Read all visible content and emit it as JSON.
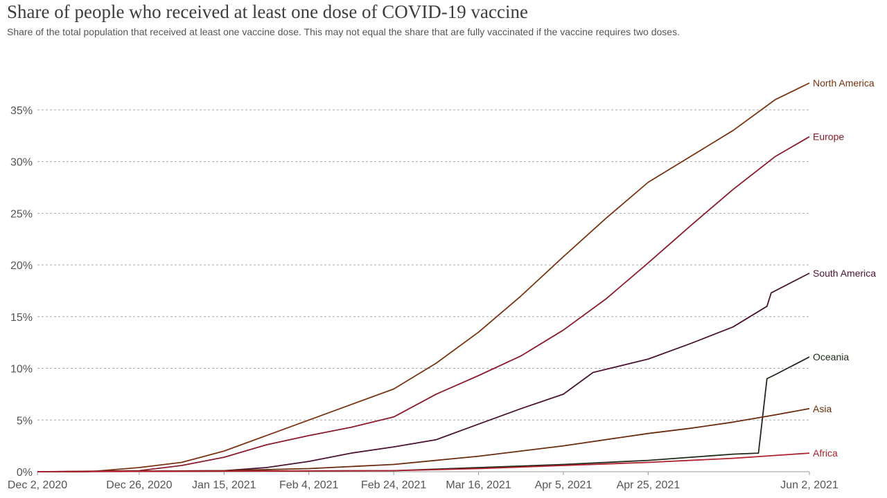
{
  "chart_data": {
    "type": "line",
    "title": "Share of people who received at least one dose of COVID-19 vaccine",
    "subtitle": "Share of the total population that received at least one vaccine dose. This may not equal the share that are fully vaccinated if the vaccine requires two doses.",
    "x_tick_labels": [
      "Dec 2, 2020",
      "Dec 26, 2020",
      "Jan 15, 2021",
      "Feb 4, 2021",
      "Feb 24, 2021",
      "Mar 16, 2021",
      "Apr 5, 2021",
      "Apr 25, 2021",
      "Jun 2, 2021"
    ],
    "x_range": [
      "2020-12-02",
      "2021-06-02"
    ],
    "y_tick_labels": [
      "0%",
      "5%",
      "10%",
      "15%",
      "20%",
      "25%",
      "30%",
      "35%"
    ],
    "y_ticks": [
      0,
      5,
      10,
      15,
      20,
      25,
      30,
      35
    ],
    "ylim": [
      0,
      37.8
    ],
    "grid": "horizontal dashed",
    "legend": "labels at line ends (right)",
    "series": [
      {
        "name": "North America",
        "color": "#7a3210",
        "points": [
          [
            "2020-12-02",
            0
          ],
          [
            "2020-12-14",
            0
          ],
          [
            "2020-12-20",
            0.2
          ],
          [
            "2020-12-26",
            0.4
          ],
          [
            "2021-01-05",
            0.9
          ],
          [
            "2021-01-15",
            2.0
          ],
          [
            "2021-01-25",
            3.5
          ],
          [
            "2021-02-04",
            5.0
          ],
          [
            "2021-02-14",
            6.5
          ],
          [
            "2021-02-24",
            8.0
          ],
          [
            "2021-03-06",
            10.5
          ],
          [
            "2021-03-16",
            13.5
          ],
          [
            "2021-03-26",
            17.0
          ],
          [
            "2021-04-05",
            20.8
          ],
          [
            "2021-04-15",
            24.5
          ],
          [
            "2021-04-25",
            28.0
          ],
          [
            "2021-05-05",
            30.5
          ],
          [
            "2021-05-15",
            33.0
          ],
          [
            "2021-05-25",
            36.0
          ],
          [
            "2021-06-02",
            37.6
          ]
        ]
      },
      {
        "name": "Europe",
        "color": "#8b1a2a",
        "points": [
          [
            "2020-12-02",
            0
          ],
          [
            "2020-12-26",
            0.1
          ],
          [
            "2021-01-05",
            0.6
          ],
          [
            "2021-01-15",
            1.4
          ],
          [
            "2021-01-25",
            2.6
          ],
          [
            "2021-02-04",
            3.5
          ],
          [
            "2021-02-14",
            4.3
          ],
          [
            "2021-02-24",
            5.3
          ],
          [
            "2021-03-06",
            7.5
          ],
          [
            "2021-03-16",
            9.3
          ],
          [
            "2021-03-26",
            11.2
          ],
          [
            "2021-04-05",
            13.7
          ],
          [
            "2021-04-15",
            16.7
          ],
          [
            "2021-04-25",
            20.2
          ],
          [
            "2021-05-05",
            23.8
          ],
          [
            "2021-05-15",
            27.3
          ],
          [
            "2021-05-25",
            30.5
          ],
          [
            "2021-06-02",
            32.4
          ]
        ]
      },
      {
        "name": "South America",
        "color": "#4a1230",
        "points": [
          [
            "2020-12-02",
            0
          ],
          [
            "2021-01-15",
            0.1
          ],
          [
            "2021-01-25",
            0.4
          ],
          [
            "2021-02-04",
            1.0
          ],
          [
            "2021-02-14",
            1.8
          ],
          [
            "2021-02-24",
            2.4
          ],
          [
            "2021-03-06",
            3.1
          ],
          [
            "2021-03-16",
            4.6
          ],
          [
            "2021-03-26",
            6.1
          ],
          [
            "2021-04-05",
            7.5
          ],
          [
            "2021-04-12",
            9.6
          ],
          [
            "2021-04-25",
            10.9
          ],
          [
            "2021-05-05",
            12.4
          ],
          [
            "2021-05-15",
            14.0
          ],
          [
            "2021-05-23",
            16.0
          ],
          [
            "2021-05-24",
            17.3
          ],
          [
            "2021-06-02",
            19.2
          ]
        ]
      },
      {
        "name": "Oceania",
        "color": "#1e2a1a",
        "points": [
          [
            "2020-12-02",
            0
          ],
          [
            "2021-02-24",
            0.1
          ],
          [
            "2021-03-16",
            0.4
          ],
          [
            "2021-04-05",
            0.7
          ],
          [
            "2021-04-25",
            1.1
          ],
          [
            "2021-05-05",
            1.4
          ],
          [
            "2021-05-15",
            1.7
          ],
          [
            "2021-05-21",
            1.8
          ],
          [
            "2021-05-23",
            9.0
          ],
          [
            "2021-05-25",
            9.4
          ],
          [
            "2021-06-02",
            11.1
          ]
        ]
      },
      {
        "name": "Asia",
        "color": "#6b2a0c",
        "points": [
          [
            "2020-12-02",
            0
          ],
          [
            "2021-01-15",
            0.1
          ],
          [
            "2021-02-04",
            0.3
          ],
          [
            "2021-02-24",
            0.7
          ],
          [
            "2021-03-16",
            1.5
          ],
          [
            "2021-04-05",
            2.5
          ],
          [
            "2021-04-25",
            3.7
          ],
          [
            "2021-05-05",
            4.2
          ],
          [
            "2021-05-15",
            4.8
          ],
          [
            "2021-05-25",
            5.5
          ],
          [
            "2021-06-02",
            6.1
          ]
        ]
      },
      {
        "name": "Africa",
        "color": "#b0202e",
        "points": [
          [
            "2020-12-02",
            0
          ],
          [
            "2021-02-24",
            0.1
          ],
          [
            "2021-03-16",
            0.3
          ],
          [
            "2021-04-05",
            0.6
          ],
          [
            "2021-04-25",
            0.9
          ],
          [
            "2021-05-15",
            1.3
          ],
          [
            "2021-06-02",
            1.8
          ]
        ]
      }
    ]
  }
}
